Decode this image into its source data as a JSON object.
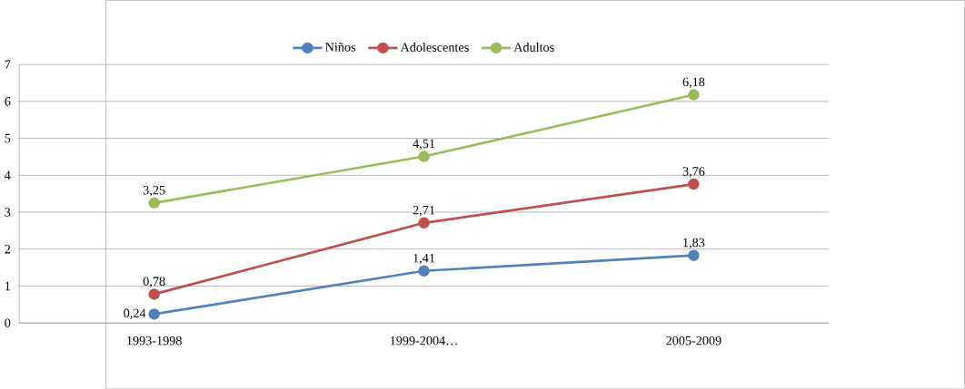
{
  "chart_data": {
    "type": "line",
    "categories": [
      "1993-1998",
      "1999-2004…",
      "2005-2009"
    ],
    "series": [
      {
        "name": "Niños",
        "color": "#4f81bd",
        "values": [
          0.24,
          1.41,
          1.83
        ],
        "value_labels": [
          "0,24",
          "1,41",
          "1,83"
        ]
      },
      {
        "name": "Adolescentes",
        "color": "#c0504d",
        "values": [
          0.78,
          2.71,
          3.76
        ],
        "value_labels": [
          "0,78",
          "2,71",
          "3,76"
        ]
      },
      {
        "name": "Adultos",
        "color": "#9bbb59",
        "values": [
          3.25,
          4.51,
          6.18
        ],
        "value_labels": [
          "3,25",
          "4,51",
          "6,18"
        ]
      }
    ],
    "ylim": [
      0,
      7
    ],
    "yticks": [
      0,
      1,
      2,
      3,
      4,
      5,
      6,
      7
    ],
    "grid": "y",
    "legend": "top",
    "marker": "circle",
    "line_style": "solid"
  }
}
